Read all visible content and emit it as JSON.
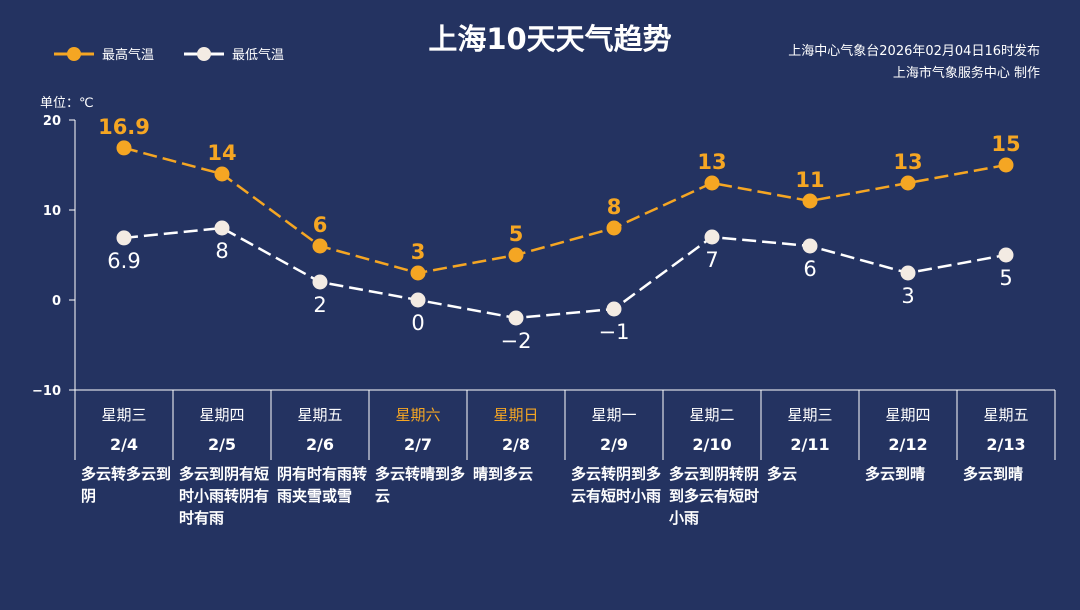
{
  "title": "上海10天天气趋势",
  "source_lines": [
    "上海中心气象台2026年02月04日16时发布",
    "上海市气象服务中心  制作"
  ],
  "unit_label": "单位：℃",
  "colors": {
    "background": "#243361",
    "high": "#f5a623",
    "low": "#f3ebe3",
    "weekend": "#f5a623"
  },
  "chart_data": {
    "type": "line",
    "ylim": [
      -10,
      20
    ],
    "yticks": [
      20,
      10,
      0,
      -10
    ],
    "legend_position": "top-left",
    "categories": [
      "2/4",
      "2/5",
      "2/6",
      "2/7",
      "2/8",
      "2/9",
      "2/10",
      "2/11",
      "2/12",
      "2/13"
    ],
    "weekdays": [
      "星期三",
      "星期四",
      "星期五",
      "星期六",
      "星期日",
      "星期一",
      "星期二",
      "星期三",
      "星期四",
      "星期五"
    ],
    "weekend": [
      false,
      false,
      false,
      true,
      true,
      false,
      false,
      false,
      false,
      false
    ],
    "weather": [
      "多云转多云到阴",
      "多云到阴有短时小雨转阴有时有雨",
      "阴有时有雨转雨夹雪或雪",
      "多云转晴到多云",
      "晴到多云",
      "多云转阴到多云有短时小雨",
      "多云到阴转阴到多云有短时小雨",
      "多云",
      "多云到晴",
      "多云到晴"
    ],
    "series": [
      {
        "name": "最高气温",
        "values": [
          16.9,
          14,
          6,
          3,
          5,
          8,
          13,
          11,
          13,
          15
        ],
        "labels": [
          "16.9",
          "14",
          "6",
          "3",
          "5",
          "8",
          "13",
          "11",
          "13",
          "15"
        ]
      },
      {
        "name": "最低气温",
        "values": [
          6.9,
          8,
          2,
          0,
          -2,
          -1,
          7,
          6,
          3,
          5
        ],
        "labels": [
          "6.9",
          "8",
          "2",
          "0",
          "−2",
          "−1",
          "7",
          "6",
          "3",
          "5"
        ]
      }
    ]
  }
}
